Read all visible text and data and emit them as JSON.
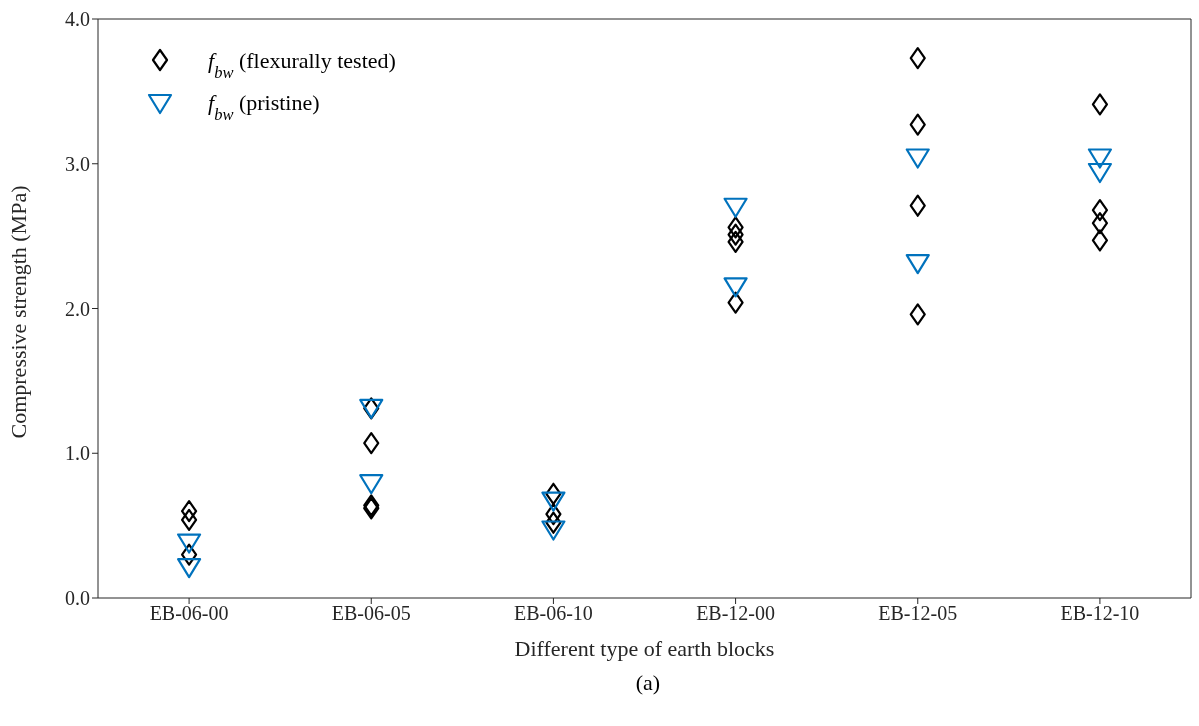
{
  "chart_data": {
    "type": "scatter",
    "xlabel": "Different type of earth blocks",
    "ylabel": "Compressive strength (MPa)",
    "annotations": [
      "(a)"
    ],
    "categories": [
      "EB-06-00",
      "EB-06-05",
      "EB-06-10",
      "EB-12-00",
      "EB-12-05",
      "EB-12-10"
    ],
    "ylim": [
      0,
      4
    ],
    "yticks": [
      {
        "value": 0,
        "label": "0.0"
      },
      {
        "value": 1,
        "label": "1.0"
      },
      {
        "value": 2,
        "label": "2.0"
      },
      {
        "value": 3,
        "label": "3.0"
      },
      {
        "value": 4,
        "label": "4.0"
      }
    ],
    "grid": false,
    "legend": "top left",
    "series": [
      {
        "name": "f$_{bw}$ (flexurally tested)",
        "color": "#000000",
        "marker": "diamond",
        "x": [
          "EB-06-00",
          "EB-06-00",
          "EB-06-00",
          "EB-06-05",
          "EB-06-05",
          "EB-06-05",
          "EB-06-05",
          "EB-06-10",
          "EB-06-10",
          "EB-06-10",
          "EB-12-00",
          "EB-12-00",
          "EB-12-00",
          "EB-12-00",
          "EB-12-05",
          "EB-12-05",
          "EB-12-05",
          "EB-12-05",
          "EB-12-10",
          "EB-12-10",
          "EB-12-10",
          "EB-12-10"
        ],
        "values": [
          0.6,
          0.54,
          0.3,
          1.31,
          1.07,
          0.64,
          0.62,
          0.72,
          0.58,
          0.52,
          2.56,
          2.51,
          2.46,
          2.04,
          3.73,
          3.27,
          2.71,
          1.96,
          3.41,
          2.68,
          2.59,
          2.47
        ]
      },
      {
        "name": "f$_{bw}$ (pristine)",
        "color": "#0072bd",
        "marker": "triangle",
        "x": [
          "EB-06-00",
          "EB-06-00",
          "EB-06-05",
          "EB-06-05",
          "EB-06-10",
          "EB-06-10",
          "EB-12-00",
          "EB-12-00",
          "EB-12-05",
          "EB-12-05",
          "EB-12-10",
          "EB-12-10"
        ],
        "values": [
          0.39,
          0.22,
          1.32,
          0.8,
          0.68,
          0.48,
          2.71,
          2.16,
          3.05,
          2.32,
          3.05,
          2.95
        ]
      }
    ]
  }
}
